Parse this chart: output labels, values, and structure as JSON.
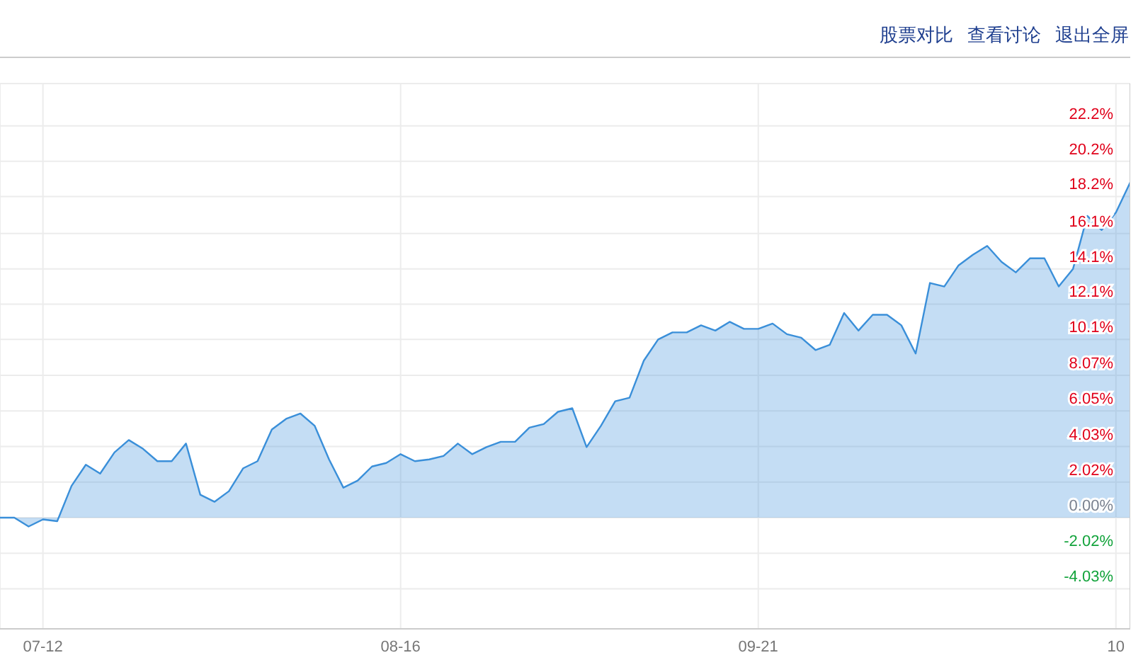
{
  "chart_data": {
    "type": "area",
    "annotations": [
      "股票对比",
      "查看讨论",
      "退出全屏"
    ],
    "categories": [
      null,
      null,
      null,
      "07-12",
      null,
      null,
      null,
      null,
      null,
      null,
      null,
      null,
      null,
      null,
      null,
      null,
      null,
      null,
      null,
      null,
      null,
      null,
      null,
      null,
      null,
      null,
      null,
      null,
      "08-16",
      null,
      null,
      null,
      null,
      null,
      null,
      null,
      null,
      null,
      null,
      null,
      null,
      null,
      null,
      null,
      null,
      null,
      null,
      null,
      null,
      null,
      null,
      null,
      null,
      "09-21",
      null,
      null,
      null,
      null,
      null,
      null,
      null,
      null,
      null,
      null,
      null,
      null,
      null,
      null,
      null,
      null,
      null,
      null,
      null,
      null,
      null,
      null,
      null,
      null,
      "10",
      null
    ],
    "series": [
      {
        "color": "#3a8fd9",
        "values": [
          0.0,
          0.0,
          -0.5,
          -0.1,
          -0.2,
          1.8,
          3.0,
          2.5,
          3.7,
          4.4,
          3.9,
          3.2,
          3.2,
          4.2,
          1.3,
          0.9,
          1.5,
          2.8,
          3.2,
          5.0,
          5.6,
          5.9,
          5.2,
          3.3,
          1.7,
          2.1,
          2.9,
          3.1,
          3.6,
          3.2,
          3.3,
          3.5,
          4.2,
          3.6,
          4.0,
          4.3,
          4.3,
          5.1,
          5.3,
          6.0,
          6.2,
          4.0,
          5.2,
          6.6,
          6.8,
          8.9,
          10.1,
          10.5,
          10.5,
          10.9,
          10.6,
          11.1,
          10.7,
          10.7,
          11.0,
          10.4,
          10.2,
          9.5,
          9.8,
          11.6,
          10.6,
          11.5,
          11.5,
          10.9,
          9.3,
          13.3,
          13.1,
          14.3,
          14.9,
          15.4,
          14.5,
          13.9,
          14.7,
          14.7,
          13.1,
          14.1,
          17.1,
          16.3,
          17.3,
          19.0
        ]
      }
    ],
    "ylim": [
      -6.3,
      24.6
    ],
    "yticks": [
      {
        "value": -4.03,
        "label": "-4.03%"
      },
      {
        "value": -2.02,
        "label": "-2.02%"
      },
      {
        "value": 0,
        "label": "0.00%"
      },
      {
        "value": 2.02,
        "label": "2.02%"
      },
      {
        "value": 4.03,
        "label": "4.03%"
      },
      {
        "value": 6.05,
        "label": "6.05%"
      },
      {
        "value": 8.07,
        "label": "8.07%"
      },
      {
        "value": 10.1,
        "label": "10.1%"
      },
      {
        "value": 12.1,
        "label": "12.1%"
      },
      {
        "value": 14.1,
        "label": "14.1%"
      },
      {
        "value": 16.1,
        "label": "16.1%"
      },
      {
        "value": 18.2,
        "label": "18.2%"
      },
      {
        "value": 20.2,
        "label": "20.2%"
      },
      {
        "value": 22.2,
        "label": "22.2%"
      }
    ],
    "grid": true
  }
}
